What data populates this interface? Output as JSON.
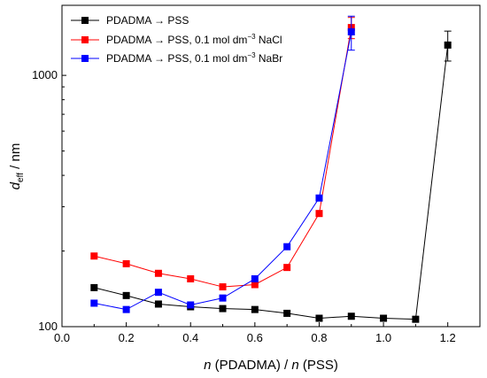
{
  "chart_data": {
    "type": "line",
    "x_axis": {
      "label_italic": "n",
      "label_mid": " (PDADMA) / ",
      "label_italic2": "n",
      "label_end": " (PSS)",
      "range": [
        0.0,
        1.3
      ],
      "ticks": [
        0.0,
        0.2,
        0.4,
        0.6,
        0.8,
        1.0,
        1.2
      ],
      "tick_labels": [
        "0.0",
        "0.2",
        "0.4",
        "0.6",
        "0.8",
        "1.0",
        "1.2"
      ]
    },
    "y_axis": {
      "label_italic": "d",
      "label_sub": "eff",
      "label_end": " / nm",
      "scale": "log",
      "range": [
        100,
        1900
      ],
      "ticks": [
        100,
        1000
      ],
      "tick_labels": [
        "100",
        "1000"
      ]
    },
    "legend": {
      "placement": "top-left",
      "entries": [
        {
          "text": "PDADMA → PSS",
          "color": "#000000"
        },
        {
          "text": "PDADMA → PSS, 0.1 mol dm",
          "sup": "−3",
          "suffix": " NaCl",
          "color": "#ff0000"
        },
        {
          "text": "PDADMA → PSS, 0.1 mol dm",
          "sup": "−3",
          "suffix": " NaBr",
          "color": "#0000ff"
        }
      ]
    },
    "series": [
      {
        "color": "#000000",
        "x": [
          0.1,
          0.2,
          0.3,
          0.4,
          0.5,
          0.6,
          0.7,
          0.8,
          0.9,
          1.0,
          1.1,
          1.2
        ],
        "y": [
          143,
          133,
          123,
          120,
          118,
          117,
          113,
          108,
          110,
          108,
          107,
          1320
        ],
        "err": [
          0,
          0,
          0,
          0,
          0,
          0,
          0,
          0,
          0,
          0,
          0,
          180
        ]
      },
      {
        "color": "#ff0000",
        "x": [
          0.1,
          0.2,
          0.3,
          0.4,
          0.5,
          0.6,
          0.7,
          0.8,
          0.9
        ],
        "y": [
          191,
          178,
          163,
          155,
          144,
          147,
          172,
          282,
          1550
        ],
        "err": [
          0,
          0,
          0,
          0,
          0,
          0,
          0,
          0,
          150
        ]
      },
      {
        "color": "#0000ff",
        "x": [
          0.1,
          0.2,
          0.3,
          0.4,
          0.5,
          0.6,
          0.7,
          0.8,
          0.9
        ],
        "y": [
          124,
          117,
          137,
          122,
          130,
          155,
          208,
          325,
          1490
        ],
        "err": [
          0,
          0,
          0,
          0,
          0,
          0,
          0,
          0,
          230
        ]
      }
    ]
  }
}
